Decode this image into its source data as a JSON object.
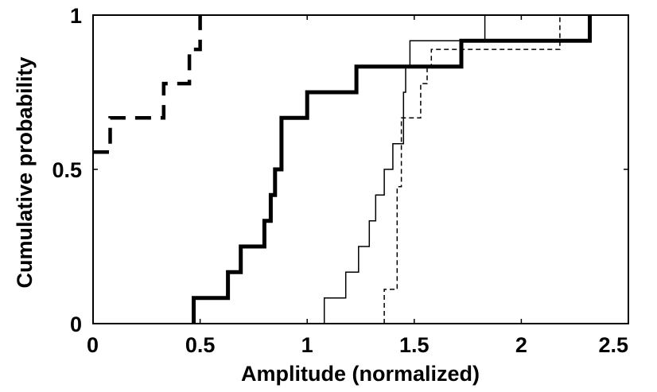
{
  "chart_data": {
    "type": "line",
    "step": true,
    "xlabel": "Amplitude (normalized)",
    "ylabel": "Cumulative probability",
    "xlim": [
      0,
      2.5
    ],
    "ylim": [
      0,
      1
    ],
    "xticks": [
      0,
      0.5,
      1,
      1.5,
      2,
      2.5
    ],
    "xtick_labels": [
      "0",
      "0.5",
      "1",
      "1.5",
      "2",
      "2.5"
    ],
    "yticks": [
      0,
      0.5,
      1
    ],
    "ytick_labels": [
      "0",
      "0.5",
      "1"
    ],
    "grid": false,
    "series": [
      {
        "style": "thick-solid",
        "x": [
          0.47,
          0.47,
          0.63,
          0.63,
          0.69,
          0.69,
          0.8,
          0.8,
          0.83,
          0.83,
          0.85,
          0.85,
          0.88,
          0.88,
          1.0,
          1.0,
          1.23,
          1.23,
          1.72,
          1.72,
          2.32,
          2.32
        ],
        "y": [
          0.0,
          0.083,
          0.083,
          0.167,
          0.167,
          0.25,
          0.25,
          0.333,
          0.333,
          0.417,
          0.417,
          0.5,
          0.5,
          0.667,
          0.667,
          0.75,
          0.75,
          0.833,
          0.833,
          0.917,
          0.917,
          1.0
        ]
      },
      {
        "style": "thin-solid",
        "x": [
          1.08,
          1.08,
          1.18,
          1.18,
          1.24,
          1.24,
          1.29,
          1.29,
          1.32,
          1.32,
          1.36,
          1.36,
          1.4,
          1.4,
          1.45,
          1.45,
          1.46,
          1.46,
          1.48,
          1.48,
          1.83,
          1.83
        ],
        "y": [
          0.0,
          0.083,
          0.083,
          0.167,
          0.167,
          0.25,
          0.25,
          0.333,
          0.333,
          0.417,
          0.417,
          0.5,
          0.5,
          0.583,
          0.583,
          0.75,
          0.75,
          0.833,
          0.833,
          0.917,
          0.917,
          1.0
        ]
      },
      {
        "style": "thin-dashed",
        "x": [
          1.36,
          1.36,
          1.42,
          1.42,
          1.44,
          1.44,
          1.53,
          1.53,
          1.56,
          1.56,
          1.58,
          1.58,
          1.6,
          1.6,
          2.18,
          2.18
        ],
        "y": [
          0.0,
          0.111,
          0.111,
          0.444,
          0.444,
          0.667,
          0.667,
          0.778,
          0.778,
          0.833,
          0.833,
          0.889,
          0.889,
          0.889,
          0.889,
          1.0
        ]
      },
      {
        "style": "thick-dashed",
        "x": [
          0.0,
          0.08,
          0.08,
          0.33,
          0.33,
          0.45,
          0.45,
          0.5,
          0.5
        ],
        "y": [
          0.556,
          0.556,
          0.667,
          0.667,
          0.778,
          0.778,
          0.889,
          0.889,
          1.0
        ]
      }
    ]
  }
}
